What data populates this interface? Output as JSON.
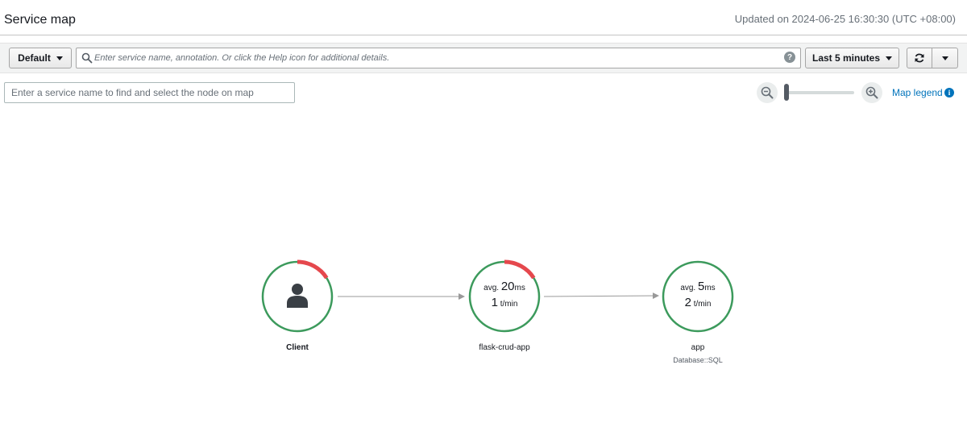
{
  "header": {
    "title": "Service map",
    "updated": "Updated on 2024-06-25 16:30:30 (UTC +08:00)"
  },
  "toolbar": {
    "default_label": "Default",
    "search_placeholder": "Enter service name, annotation. Or click the Help icon for additional details.",
    "help_icon": "?",
    "time_range_label": "Last 5 minutes",
    "refresh_icon": "refresh-icon"
  },
  "map_controls": {
    "find_placeholder": "Enter a service name to find and select the node on map",
    "zoom_level": 0.0,
    "legend_label": "Map legend",
    "legend_info_icon": "i"
  },
  "nodes": [
    {
      "name": "Client",
      "type": "client",
      "icon": "user-icon",
      "error_fraction": 0.16
    },
    {
      "name": "flask-crud-app",
      "avg_prefix": "avg.",
      "avg_value": "20",
      "avg_unit": "ms",
      "rate_value": "1",
      "rate_unit": "t/min",
      "error_fraction": 0.16
    },
    {
      "name": "app",
      "subtitle": "Database::SQL",
      "avg_prefix": "avg.",
      "avg_value": "5",
      "avg_unit": "ms",
      "rate_value": "2",
      "rate_unit": "t/min",
      "error_fraction": 0
    }
  ],
  "colors": {
    "ok": "#3c9a5c",
    "error": "#e5484d",
    "edge": "#999999",
    "link": "#0073bb"
  }
}
